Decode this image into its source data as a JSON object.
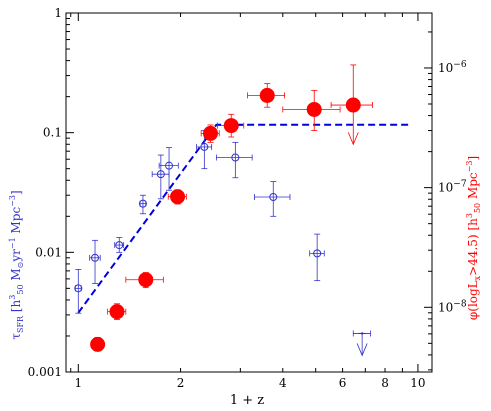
{
  "chart_data": {
    "type": "scatter",
    "title": "",
    "xlabel": "1 + z",
    "x_scale": "log",
    "xlim": [
      0.92,
      11
    ],
    "x_ticks": [
      1,
      2,
      4,
      6,
      8,
      10
    ],
    "x_ticklabels": [
      "1",
      "2",
      "4",
      "6",
      "8",
      "10"
    ],
    "ylabel_left": {
      "parts": [
        {
          "t": "τ",
          "s": "normal"
        },
        {
          "t": "SFR",
          "s": "sub"
        },
        {
          "t": " [h",
          "s": "normal"
        },
        {
          "t": "3",
          "s": "sup"
        },
        {
          "t": "50",
          "s": "sub"
        },
        {
          "t": " M",
          "s": "normal"
        },
        {
          "t": "⊙",
          "s": "sub"
        },
        {
          "t": "yr",
          "s": "normal"
        },
        {
          "t": "−1",
          "s": "sup"
        },
        {
          "t": " Mpc",
          "s": "normal"
        },
        {
          "t": "−3",
          "s": "sup"
        },
        {
          "t": "]",
          "s": "normal"
        }
      ]
    },
    "ylabel_right": {
      "parts": [
        {
          "t": "φ(logL",
          "s": "normal"
        },
        {
          "t": "x",
          "s": "sub"
        },
        {
          "t": ">44.5) [h",
          "s": "normal"
        },
        {
          "t": "3",
          "s": "sup"
        },
        {
          "t": "50",
          "s": "sub"
        },
        {
          "t": " Mpc",
          "s": "normal"
        },
        {
          "t": "−3",
          "s": "sup"
        },
        {
          "t": "]",
          "s": "normal"
        }
      ]
    },
    "y_scale": "log",
    "ylim": [
      0.001,
      1
    ],
    "y_ticks": [
      0.001,
      0.01,
      0.1,
      1
    ],
    "y_ticklabels": [
      "0.001",
      "0.01",
      "0.1",
      "1"
    ],
    "y_right_scale": "log",
    "y_right_lim": [
      2.88e-09,
      2.88e-06
    ],
    "y_right_ticks": [
      1e-08,
      1e-07,
      1e-06
    ],
    "y_right_ticklabels": [
      {
        "base": "10",
        "exp": "−8"
      },
      {
        "base": "10",
        "exp": "−7"
      },
      {
        "base": "10",
        "exp": "−6"
      }
    ],
    "colors": {
      "sfr": "#3333cc",
      "qso": "#ff0000",
      "axis": "#000000"
    },
    "series": [
      {
        "marker": "open-circle",
        "axis": "left",
        "points": [
          {
            "x": 1.0,
            "y": 0.005,
            "xerr": [
              0.02,
              0.02
            ],
            "yerr": [
              0.0019,
              0.0022
            ]
          },
          {
            "x": 1.12,
            "y": 0.009,
            "xerr": [
              0.04,
              0.04
            ],
            "yerr": [
              0.0035,
              0.0036
            ]
          },
          {
            "x": 1.32,
            "y": 0.0115,
            "xerr": [
              0.04,
              0.04
            ],
            "yerr": [
              0.0015,
              0.0018
            ]
          },
          {
            "x": 1.55,
            "y": 0.0255,
            "xerr": [
              0.03,
              0.03
            ],
            "yerr": [
              0.0045,
              0.0045
            ]
          },
          {
            "x": 1.75,
            "y": 0.045,
            "xerr": [
              0.1,
              0.1
            ],
            "yerr": [
              0.017,
              0.02
            ]
          },
          {
            "x": 1.85,
            "y": 0.053,
            "xerr": [
              0.12,
              0.12
            ],
            "yerr": [
              0.02,
              0.022
            ]
          },
          {
            "x": 2.35,
            "y": 0.076,
            "xerr": [
              0.12,
              0.12
            ],
            "yerr": [
              0.026,
              0.028
            ]
          },
          {
            "x": 2.9,
            "y": 0.062,
            "xerr": [
              0.35,
              0.35
            ],
            "yerr": [
              0.02,
              0.021
            ]
          },
          {
            "x": 3.75,
            "y": 0.029,
            "xerr": [
              0.45,
              0.45
            ],
            "yerr": [
              0.009,
              0.01
            ]
          },
          {
            "x": 5.05,
            "y": 0.0098,
            "xerr": [
              0.25,
              0.25
            ],
            "yerr": [
              0.004,
              0.0044
            ]
          },
          {
            "x": 6.85,
            "y": 0.0021,
            "xerr": [
              0.4,
              0.4
            ],
            "upper_limit": true
          }
        ]
      },
      {
        "marker": "filled-circle",
        "axis": "right",
        "points": [
          {
            "x": 1.14,
            "y": 4.9e-09,
            "xerr": [
              0.04,
              0.04
            ],
            "yerr": [
              6e-10,
              7e-10
            ]
          },
          {
            "x": 1.3,
            "y": 9.2e-09,
            "xerr": [
              0.08,
              0.08
            ],
            "yerr": [
              1.3e-09,
              1.5e-09
            ]
          },
          {
            "x": 1.58,
            "y": 1.7e-08,
            "xerr": [
              0.2,
              0.2
            ],
            "yerr": [
              2.4e-09,
              2.5e-09
            ]
          },
          {
            "x": 1.96,
            "y": 8.4e-08,
            "xerr": [
              0.12,
              0.12
            ],
            "yerr": [
              1.1e-08,
              1.2e-08
            ]
          },
          {
            "x": 2.45,
            "y": 2.84e-07,
            "xerr": [
              0.15,
              0.15
            ],
            "yerr": [
              4.5e-08,
              5e-08
            ]
          },
          {
            "x": 2.82,
            "y": 3.3e-07,
            "xerr": [
              0.25,
              0.25
            ],
            "yerr": [
              6.5e-08,
              8e-08
            ]
          },
          {
            "x": 3.6,
            "y": 5.9e-07,
            "xerr": [
              0.45,
              0.45
            ],
            "yerr": [
              1.2e-07,
              1.5e-07
            ]
          },
          {
            "x": 4.95,
            "y": 4.5e-07,
            "xerr": [
              0.95,
              0.95
            ],
            "yerr": [
              1.5e-07,
              2e-07
            ]
          },
          {
            "x": 6.45,
            "y": 4.9e-07,
            "xerr": [
              0.9,
              0.9
            ],
            "yerr": [
              2.6e-07,
              5.7e-07
            ],
            "upper_limit": true
          }
        ]
      }
    ],
    "model_line": {
      "style": "dashed",
      "color": "#0000dd",
      "axis": "right",
      "points": [
        [
          1.0,
          9e-09
        ],
        [
          2.55,
          3.35e-07
        ],
        [
          9.4,
          3.35e-07
        ]
      ]
    }
  }
}
